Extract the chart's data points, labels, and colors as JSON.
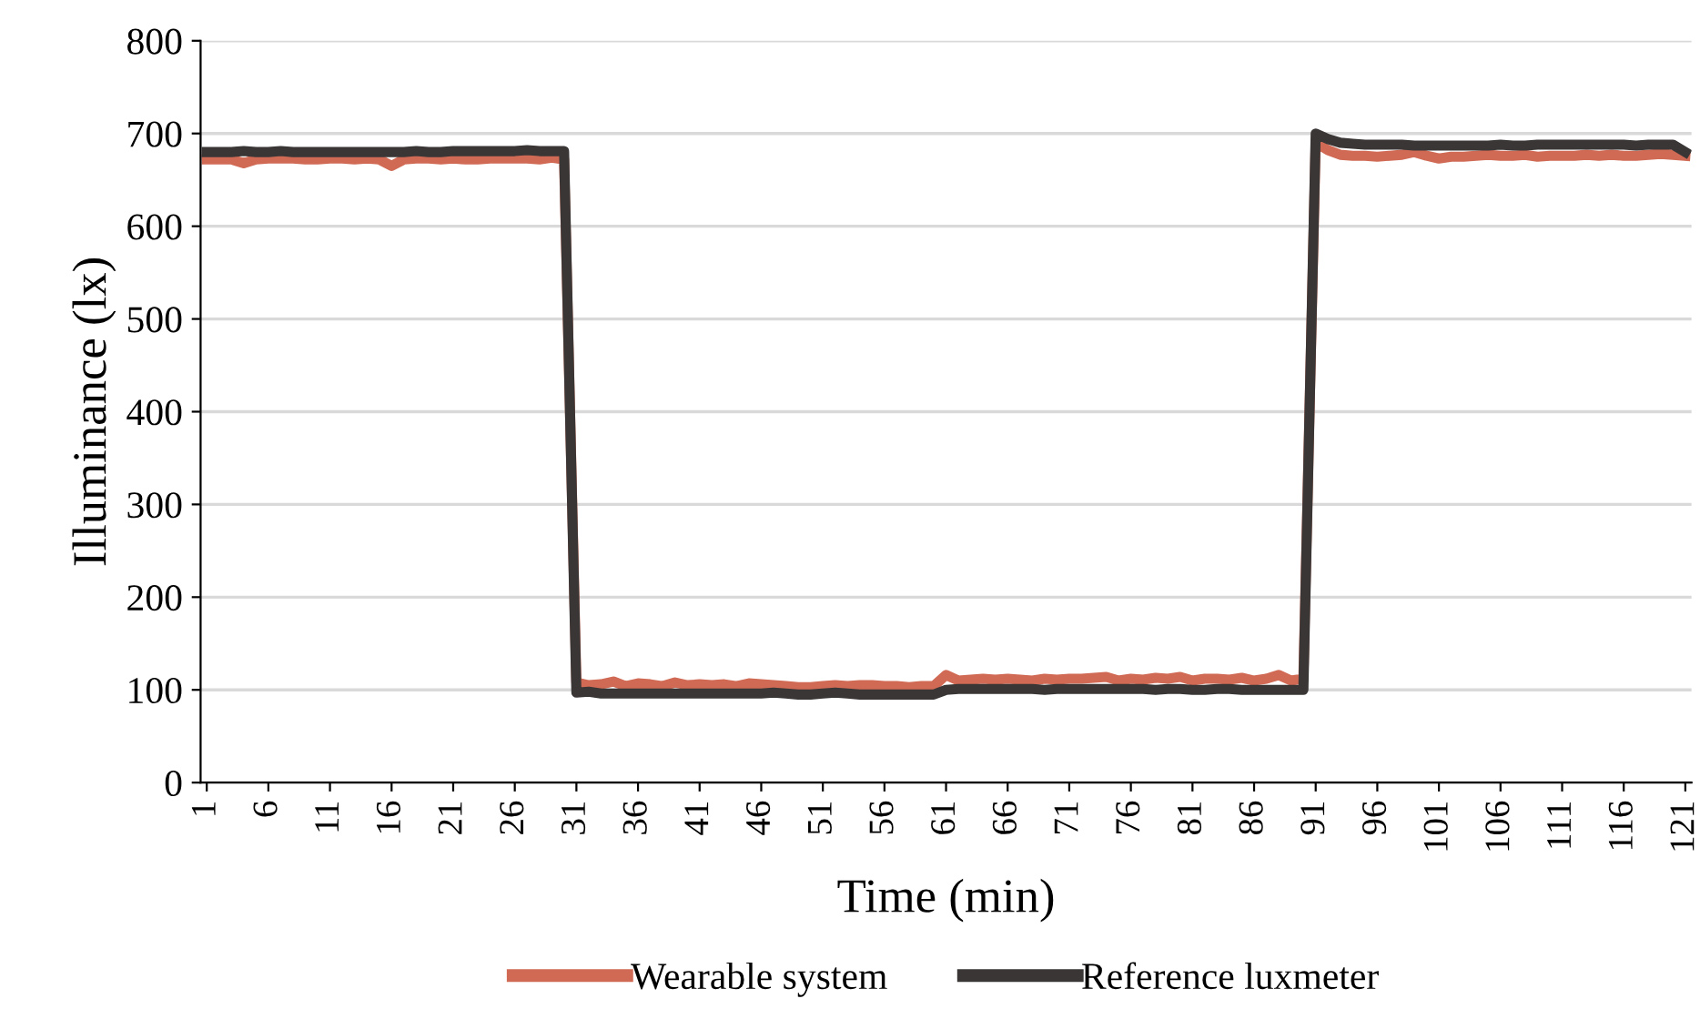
{
  "chart_data": {
    "type": "line",
    "xlabel": "Time (min)",
    "ylabel": "Illuminance (lx)",
    "x": [
      1,
      2,
      3,
      4,
      5,
      6,
      7,
      8,
      9,
      10,
      11,
      12,
      13,
      14,
      15,
      16,
      17,
      18,
      19,
      20,
      21,
      22,
      23,
      24,
      25,
      26,
      27,
      28,
      29,
      30,
      31,
      32,
      33,
      34,
      35,
      36,
      37,
      38,
      39,
      40,
      41,
      42,
      43,
      44,
      45,
      46,
      47,
      48,
      49,
      50,
      51,
      52,
      53,
      54,
      55,
      56,
      57,
      58,
      59,
      60,
      61,
      62,
      63,
      64,
      65,
      66,
      67,
      68,
      69,
      70,
      71,
      72,
      73,
      74,
      75,
      76,
      77,
      78,
      79,
      80,
      81,
      82,
      83,
      84,
      85,
      86,
      87,
      88,
      89,
      90,
      91,
      92,
      93,
      94,
      95,
      96,
      97,
      98,
      99,
      100,
      101,
      102,
      103,
      104,
      105,
      106,
      107,
      108,
      109,
      110,
      111,
      112,
      113,
      114,
      115,
      116,
      117,
      118,
      119,
      120,
      121
    ],
    "xlim": [
      0.5,
      121.5
    ],
    "xticks": [
      1,
      6,
      11,
      16,
      21,
      26,
      31,
      36,
      41,
      46,
      51,
      56,
      61,
      66,
      71,
      76,
      81,
      86,
      91,
      96,
      101,
      106,
      111,
      116,
      121
    ],
    "ylim": [
      0,
      800
    ],
    "yticks": [
      0,
      100,
      200,
      300,
      400,
      500,
      600,
      700,
      800
    ],
    "grid": "y",
    "legend": "bottom",
    "series": [
      {
        "name": "Wearable system",
        "color": "#d06a55",
        "values": [
          672,
          672,
          672,
          668,
          672,
          673,
          673,
          673,
          672,
          672,
          673,
          673,
          672,
          673,
          672,
          665,
          672,
          673,
          673,
          672,
          673,
          672,
          672,
          673,
          673,
          673,
          673,
          672,
          674,
          672,
          108,
          105,
          106,
          109,
          104,
          107,
          106,
          104,
          108,
          105,
          106,
          105,
          106,
          104,
          107,
          106,
          105,
          104,
          103,
          103,
          104,
          105,
          104,
          105,
          105,
          104,
          104,
          103,
          104,
          104,
          116,
          110,
          111,
          112,
          111,
          112,
          111,
          110,
          112,
          111,
          112,
          112,
          113,
          114,
          110,
          112,
          111,
          113,
          112,
          114,
          110,
          112,
          112,
          111,
          113,
          110,
          112,
          116,
          110,
          112,
          690,
          682,
          677,
          676,
          676,
          675,
          676,
          677,
          680,
          676,
          673,
          675,
          675,
          676,
          677,
          676,
          676,
          677,
          675,
          676,
          676,
          676,
          677,
          676,
          677,
          676,
          676,
          677,
          678,
          677,
          676
        ]
      },
      {
        "name": "Reference luxmeter",
        "color": "#3a3636",
        "values": [
          680,
          680,
          680,
          681,
          680,
          680,
          681,
          680,
          680,
          680,
          680,
          680,
          680,
          680,
          680,
          680,
          680,
          681,
          680,
          680,
          681,
          681,
          681,
          681,
          681,
          681,
          682,
          681,
          681,
          681,
          97,
          98,
          96,
          96,
          96,
          96,
          96,
          96,
          96,
          96,
          96,
          96,
          96,
          96,
          96,
          96,
          97,
          96,
          95,
          95,
          96,
          97,
          96,
          95,
          95,
          95,
          95,
          95,
          95,
          95,
          100,
          101,
          101,
          101,
          101,
          101,
          101,
          101,
          100,
          101,
          101,
          101,
          101,
          101,
          101,
          101,
          101,
          100,
          101,
          101,
          100,
          100,
          101,
          101,
          100,
          100,
          100,
          100,
          100,
          100,
          700,
          694,
          690,
          689,
          688,
          688,
          688,
          688,
          687,
          687,
          687,
          687,
          687,
          687,
          687,
          688,
          687,
          687,
          688,
          688,
          688,
          688,
          688,
          688,
          688,
          688,
          687,
          688,
          688,
          688,
          680
        ]
      }
    ]
  }
}
